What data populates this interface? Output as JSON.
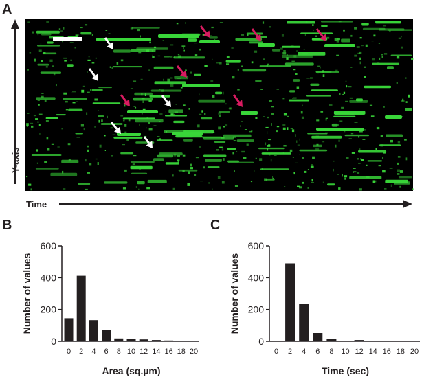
{
  "panels": {
    "a": {
      "letter": "A",
      "y_axis_label": "Y-axis",
      "x_axis_label": "Time"
    },
    "b": {
      "letter": "B"
    },
    "c": {
      "letter": "C"
    }
  },
  "colors": {
    "kymograph_bg": "#000000",
    "signal": "#39d639",
    "arrow_magenta": "#d81b60",
    "arrow_white": "#ffffff",
    "bar": "#231f20"
  },
  "chart_data": [
    {
      "type": "bar",
      "categories": [
        "0",
        "2",
        "4",
        "6",
        "8",
        "10",
        "12",
        "14",
        "16",
        "18",
        "20"
      ],
      "values": [
        145,
        412,
        133,
        70,
        18,
        15,
        12,
        8,
        5,
        2,
        2
      ],
      "xlabel": "Area (sq.µm)",
      "ylabel": "Number of values",
      "ylim": [
        0,
        600
      ],
      "yticks": [
        0,
        200,
        400,
        600
      ]
    },
    {
      "type": "bar",
      "categories": [
        "0",
        "2",
        "4",
        "6",
        "8",
        "10",
        "12",
        "14",
        "16",
        "18",
        "20"
      ],
      "values": [
        0,
        490,
        237,
        52,
        15,
        3,
        8,
        2,
        1,
        1,
        1
      ],
      "xlabel": "Time (sec)",
      "ylabel": "Number of values",
      "ylim": [
        0,
        600
      ],
      "yticks": [
        0,
        200,
        400,
        600
      ]
    }
  ]
}
